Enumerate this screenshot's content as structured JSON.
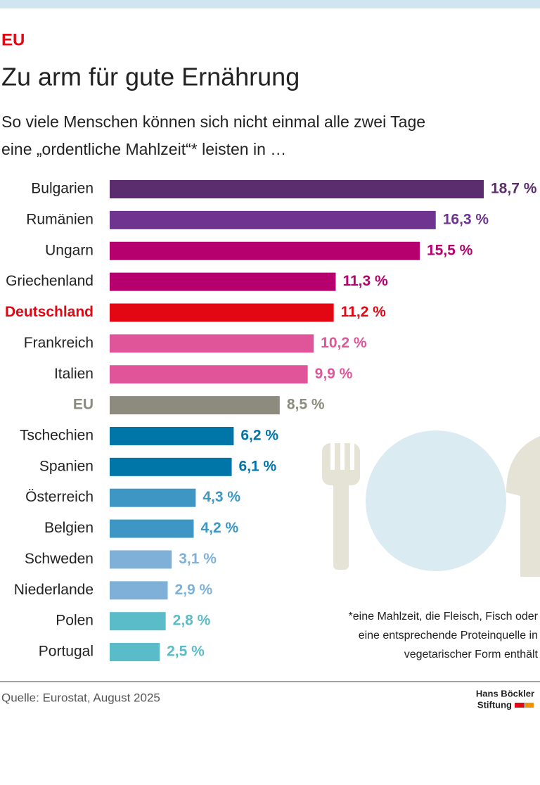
{
  "chart_data": {
    "type": "bar",
    "orientation": "horizontal",
    "kicker": "EU",
    "title": "Zu arm für gute Ernährung",
    "subtitle": [
      "So viele Menschen können sich nicht einmal alle zwei Tage",
      "eine „ordentliche Mahlzeit“* leisten in …"
    ],
    "categories": [
      "Bulgarien",
      "Rumänien",
      "Ungarn",
      "Griechenland",
      "Deutschland",
      "Frankreich",
      "Italien",
      "EU",
      "Tschechien",
      "Spanien",
      "Österreich",
      "Belgien",
      "Schweden",
      "Niederlande",
      "Polen",
      "Portugal"
    ],
    "values": [
      18.7,
      16.3,
      15.5,
      11.3,
      11.2,
      10.2,
      9.9,
      8.5,
      6.2,
      6.1,
      4.3,
      4.2,
      3.1,
      2.9,
      2.8,
      2.5
    ],
    "value_labels": [
      "18,7 %",
      "16,3 %",
      "15,5 %",
      "11,3 %",
      "11,2 %",
      "10,2 %",
      "9,9 %",
      "8,5 %",
      "6,2 %",
      "6,1 %",
      "4,3 %",
      "4,2 %",
      "3,1 %",
      "2,9 %",
      "2,8 %",
      "2,5 %"
    ],
    "colors": [
      "#5c2d6e",
      "#6e3490",
      "#b5006e",
      "#b5006e",
      "#e30613",
      "#e0549a",
      "#e0549a",
      "#8c8b7e",
      "#0076a8",
      "#0076a8",
      "#3d96c4",
      "#3d96c4",
      "#7fb1d8",
      "#7fb1d8",
      "#5bbcc9",
      "#5bbcc9"
    ],
    "label_colors": [
      "#222",
      "#222",
      "#222",
      "#222",
      "#e30613",
      "#222",
      "#222",
      "#8c8b7e",
      "#222",
      "#222",
      "#222",
      "#222",
      "#222",
      "#222",
      "#222",
      "#222"
    ],
    "footnote": [
      "*eine Mahlzeit, die Fleisch, Fisch oder",
      "eine entsprechende Proteinquelle in",
      "vegetarischer Form enthält"
    ],
    "source": "Quelle: Eurostat, August 2025",
    "logo": [
      "Hans Böckler",
      "Stiftung"
    ]
  }
}
